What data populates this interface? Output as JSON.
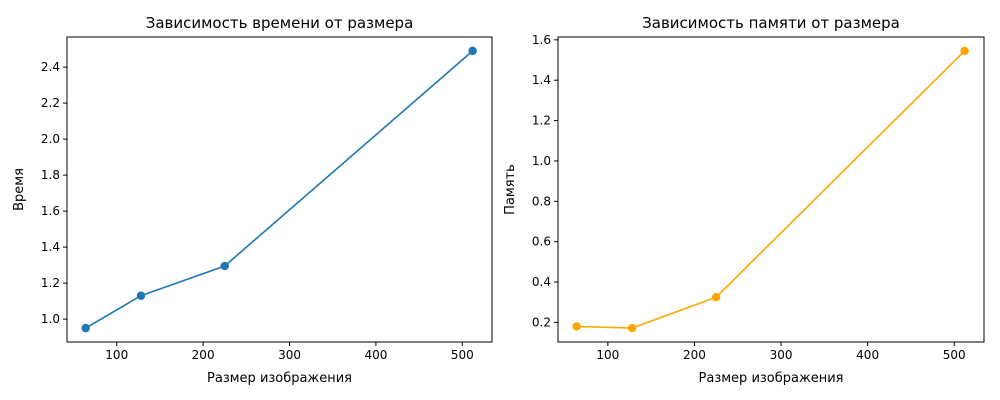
{
  "chart_data": [
    {
      "type": "line",
      "title": "Зависимость времени от размера",
      "xlabel": "Размер изображения",
      "ylabel": "Время",
      "xlim": [
        42.4,
        534.4
      ],
      "ylim": [
        0.873,
        2.567
      ],
      "xticks": [
        100,
        200,
        300,
        400,
        500
      ],
      "yticks": [
        1.0,
        1.2,
        1.4,
        1.6,
        1.8,
        2.0,
        2.2,
        2.4
      ],
      "ytick_labels": [
        "1.0",
        "1.2",
        "1.4",
        "1.6",
        "1.8",
        "2.0",
        "2.2",
        "2.4"
      ],
      "grid": false,
      "series": [
        {
          "color": "#1f77b4",
          "x": [
            64,
            128,
            225,
            512
          ],
          "y": [
            0.95,
            1.13,
            1.295,
            2.49
          ]
        }
      ]
    },
    {
      "type": "line",
      "title": "Зависимость памяти от размера",
      "xlabel": "Размер изображения",
      "ylabel": "Память",
      "xlim": [
        42.4,
        534.4
      ],
      "ylim": [
        0.103,
        1.614
      ],
      "xticks": [
        100,
        200,
        300,
        400,
        500
      ],
      "yticks": [
        0.2,
        0.4,
        0.6,
        0.8,
        1.0,
        1.2,
        1.4,
        1.6
      ],
      "ytick_labels": [
        "0.2",
        "0.4",
        "0.6",
        "0.8",
        "1.0",
        "1.2",
        "1.4",
        "1.6"
      ],
      "grid": false,
      "series": [
        {
          "color": "#ffa500",
          "x": [
            64,
            128,
            225,
            512
          ],
          "y": [
            0.18,
            0.172,
            0.325,
            1.545
          ]
        }
      ]
    }
  ]
}
